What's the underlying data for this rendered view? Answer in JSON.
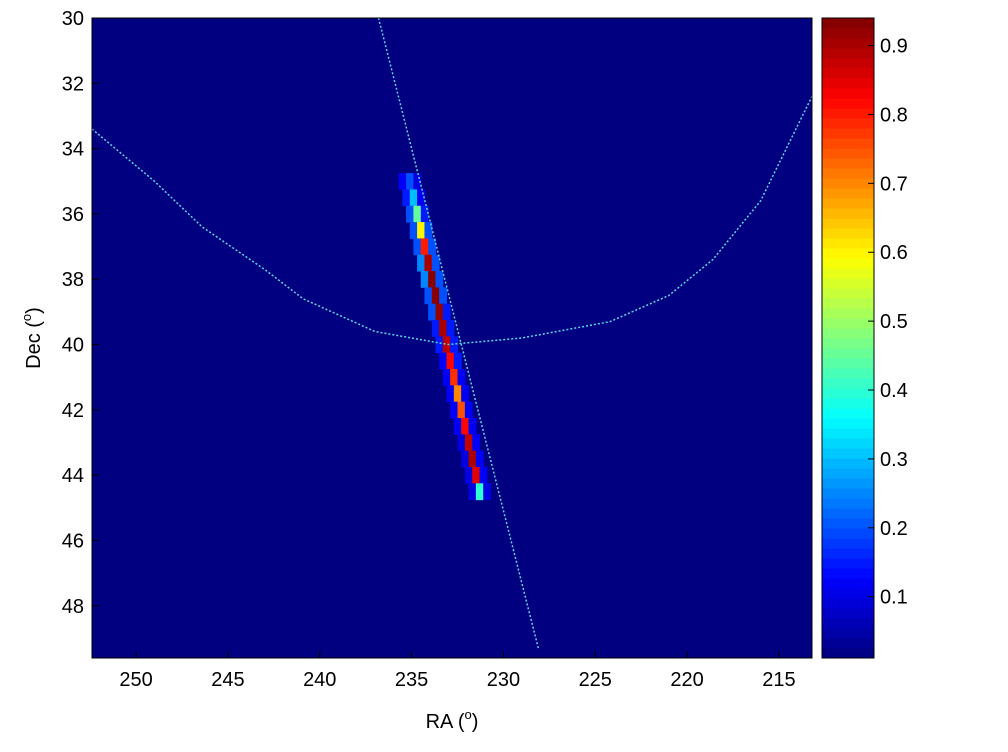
{
  "chart_data": {
    "type": "heatmap",
    "xlabel": [
      "RA (",
      "o",
      ")"
    ],
    "ylabel": [
      "Dec (",
      "o",
      ")"
    ],
    "xlim": [
      252.4,
      213.2
    ],
    "xticks": [
      250,
      245,
      240,
      235,
      230,
      225,
      220,
      215
    ],
    "ylim": [
      30,
      49.6
    ],
    "yticks": [
      30,
      32,
      34,
      36,
      38,
      40,
      42,
      44,
      46,
      48
    ],
    "colormap": "jet",
    "clim": [
      0.011,
      0.94
    ],
    "cticks": [
      0.1,
      0.2,
      0.3,
      0.4,
      0.5,
      0.6,
      0.7,
      0.8,
      0.9
    ],
    "rows": [
      {
        "y": 35,
        "x": [
          235.5,
          235.1,
          234.7
        ],
        "values": [
          0.12,
          0.2,
          0.1
        ]
      },
      {
        "y": 35.5,
        "x": [
          235.3,
          234.9,
          234.5
        ],
        "values": [
          0.15,
          0.3,
          0.12
        ]
      },
      {
        "y": 36,
        "x": [
          235.1,
          234.7,
          234.3
        ],
        "values": [
          0.2,
          0.45,
          0.15
        ]
      },
      {
        "y": 36.5,
        "x": [
          234.9,
          234.5,
          234.1
        ],
        "values": [
          0.2,
          0.6,
          0.2
        ]
      },
      {
        "y": 37,
        "x": [
          234.7,
          234.3,
          233.9
        ],
        "values": [
          0.2,
          0.8,
          0.2
        ]
      },
      {
        "y": 37.5,
        "x": [
          234.5,
          234.1,
          233.7
        ],
        "values": [
          0.25,
          0.9,
          0.2
        ]
      },
      {
        "y": 38,
        "x": [
          234.3,
          233.9,
          233.5
        ],
        "values": [
          0.25,
          0.93,
          0.2
        ]
      },
      {
        "y": 38.5,
        "x": [
          234.1,
          233.7,
          233.3
        ],
        "values": [
          0.2,
          0.93,
          0.2
        ]
      },
      {
        "y": 39,
        "x": [
          233.9,
          233.5,
          233.1
        ],
        "values": [
          0.2,
          0.92,
          0.15
        ]
      },
      {
        "y": 39.5,
        "x": [
          233.7,
          233.3,
          232.9
        ],
        "values": [
          0.15,
          0.9,
          0.15
        ]
      },
      {
        "y": 40,
        "x": [
          233.5,
          233.1,
          232.7
        ],
        "values": [
          0.15,
          0.88,
          0.15
        ]
      },
      {
        "y": 40.5,
        "x": [
          233.3,
          232.9,
          232.5
        ],
        "values": [
          0.12,
          0.82,
          0.15
        ]
      },
      {
        "y": 41,
        "x": [
          233.1,
          232.7,
          232.3
        ],
        "values": [
          0.12,
          0.78,
          0.12
        ]
      },
      {
        "y": 41.5,
        "x": [
          232.9,
          232.5,
          232.1
        ],
        "values": [
          0.12,
          0.7,
          0.12
        ]
      },
      {
        "y": 42,
        "x": [
          232.7,
          232.3,
          231.9
        ],
        "values": [
          0.12,
          0.75,
          0.12
        ]
      },
      {
        "y": 42.5,
        "x": [
          232.5,
          232.1,
          231.7
        ],
        "values": [
          0.12,
          0.82,
          0.12
        ]
      },
      {
        "y": 43,
        "x": [
          232.3,
          231.9,
          231.5
        ],
        "values": [
          0.1,
          0.88,
          0.12
        ]
      },
      {
        "y": 43.5,
        "x": [
          232.1,
          231.7,
          231.3
        ],
        "values": [
          0.1,
          0.9,
          0.12
        ]
      },
      {
        "y": 44,
        "x": [
          231.9,
          231.5,
          231.1
        ],
        "values": [
          0.1,
          0.85,
          0.12
        ]
      },
      {
        "y": 44.5,
        "x": [
          231.7,
          231.3,
          230.9
        ],
        "values": [
          0.1,
          0.4,
          0.1
        ]
      }
    ],
    "series": [
      {
        "color": "#5fd6e6",
        "x": [
          252.4,
          249,
          246.4,
          243,
          240.9,
          237,
          233,
          229,
          224.2,
          221,
          218.6,
          216,
          213.2
        ],
        "y": [
          33.4,
          35.0,
          36.4,
          37.7,
          38.6,
          39.6,
          40.0,
          39.8,
          39.3,
          38.5,
          37.4,
          35.6,
          32.4
        ]
      },
      {
        "color": "#5fd6e6",
        "x": [
          236.8,
          228.1
        ],
        "y": [
          30,
          49.3
        ]
      }
    ]
  }
}
